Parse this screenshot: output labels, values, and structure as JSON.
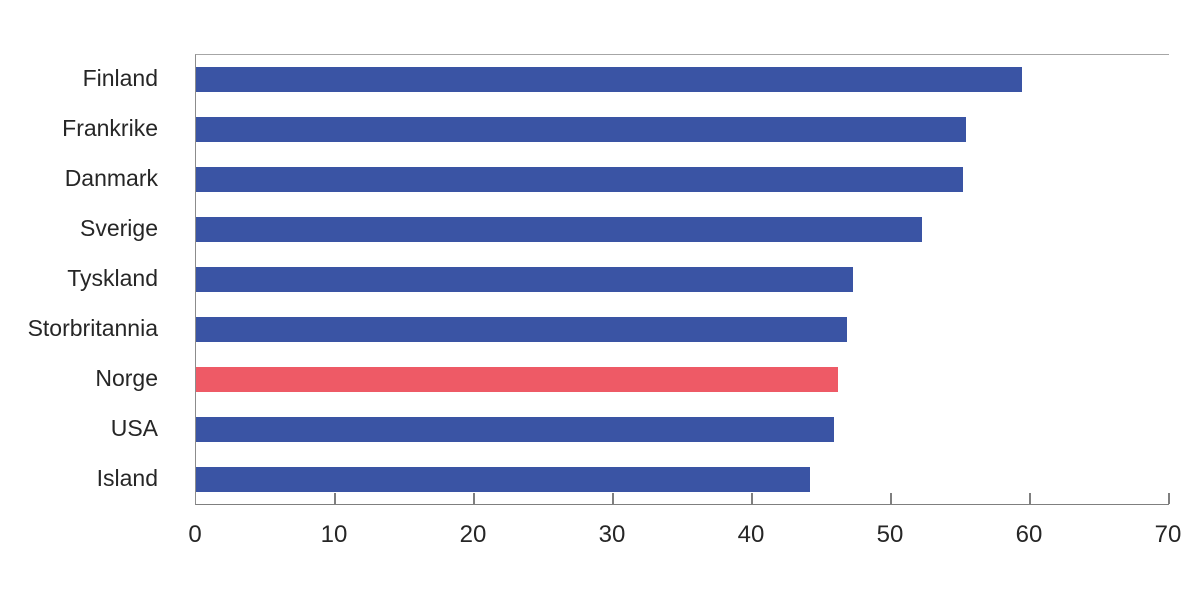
{
  "chart_data": {
    "type": "bar",
    "orientation": "horizontal",
    "title": "",
    "xlabel": "",
    "ylabel": "",
    "categories": [
      "Finland",
      "Frankrike",
      "Danmark",
      "Sverige",
      "Tyskland",
      "Storbritannia",
      "Norge",
      "USA",
      "Island"
    ],
    "values": [
      59.4,
      55.4,
      55.2,
      52.2,
      47.3,
      46.8,
      46.2,
      45.9,
      44.2
    ],
    "highlighted_category": "Norge",
    "xlim": [
      0,
      70
    ],
    "x_ticks": [
      0,
      10,
      20,
      30,
      40,
      50,
      60,
      70
    ],
    "grid": false,
    "legend_position": "none",
    "colors": {
      "bar_default": "#3a54a4",
      "bar_highlight": "#ee5a66",
      "frame_top": "#a6a6a6",
      "axis_line": "#7f7f7f",
      "text": "#262626"
    }
  }
}
